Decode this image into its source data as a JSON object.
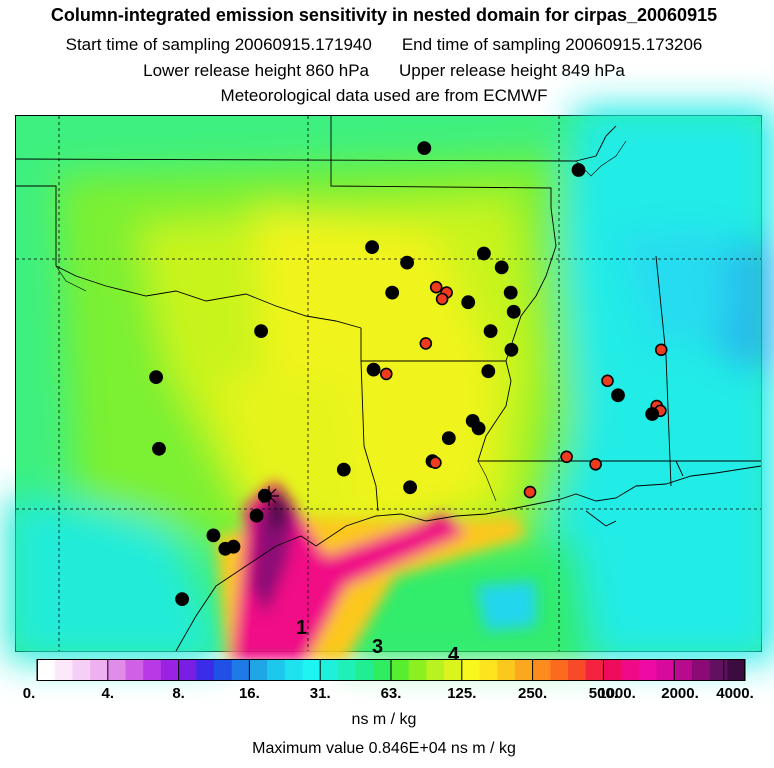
{
  "header": {
    "title": "Column-integrated emission sensitivity in nested domain for cirpas_20060915",
    "start_label": "Start time of sampling 20060915.171940",
    "end_label": "End time of sampling 20060915.173206",
    "lower_label": "Lower release height  860 hPa",
    "upper_label": "Upper release height  849 hPa",
    "met_label": "Meteorological data used are from ECMWF"
  },
  "map": {
    "markers": [
      {
        "lon_frac": 0.548,
        "lat_frac": 0.06,
        "color": "black"
      },
      {
        "lon_frac": 0.755,
        "lat_frac": 0.101,
        "color": "black"
      },
      {
        "lon_frac": 0.478,
        "lat_frac": 0.245,
        "color": "black"
      },
      {
        "lon_frac": 0.525,
        "lat_frac": 0.274,
        "color": "black"
      },
      {
        "lon_frac": 0.628,
        "lat_frac": 0.257,
        "color": "black"
      },
      {
        "lon_frac": 0.652,
        "lat_frac": 0.283,
        "color": "black"
      },
      {
        "lon_frac": 0.505,
        "lat_frac": 0.33,
        "color": "black"
      },
      {
        "lon_frac": 0.564,
        "lat_frac": 0.32,
        "color": "red"
      },
      {
        "lon_frac": 0.578,
        "lat_frac": 0.33,
        "color": "red"
      },
      {
        "lon_frac": 0.572,
        "lat_frac": 0.342,
        "color": "red"
      },
      {
        "lon_frac": 0.607,
        "lat_frac": 0.348,
        "color": "black"
      },
      {
        "lon_frac": 0.664,
        "lat_frac": 0.33,
        "color": "black"
      },
      {
        "lon_frac": 0.668,
        "lat_frac": 0.366,
        "color": "black"
      },
      {
        "lon_frac": 0.637,
        "lat_frac": 0.402,
        "color": "black"
      },
      {
        "lon_frac": 0.55,
        "lat_frac": 0.425,
        "color": "red"
      },
      {
        "lon_frac": 0.665,
        "lat_frac": 0.437,
        "color": "black"
      },
      {
        "lon_frac": 0.329,
        "lat_frac": 0.402,
        "color": "black"
      },
      {
        "lon_frac": 0.48,
        "lat_frac": 0.474,
        "color": "black"
      },
      {
        "lon_frac": 0.497,
        "lat_frac": 0.482,
        "color": "red"
      },
      {
        "lon_frac": 0.634,
        "lat_frac": 0.477,
        "color": "black"
      },
      {
        "lon_frac": 0.866,
        "lat_frac": 0.437,
        "color": "red"
      },
      {
        "lon_frac": 0.188,
        "lat_frac": 0.488,
        "color": "black"
      },
      {
        "lon_frac": 0.794,
        "lat_frac": 0.495,
        "color": "red"
      },
      {
        "lon_frac": 0.808,
        "lat_frac": 0.522,
        "color": "black"
      },
      {
        "lon_frac": 0.86,
        "lat_frac": 0.542,
        "color": "red"
      },
      {
        "lon_frac": 0.865,
        "lat_frac": 0.551,
        "color": "red"
      },
      {
        "lon_frac": 0.854,
        "lat_frac": 0.557,
        "color": "black"
      },
      {
        "lon_frac": 0.613,
        "lat_frac": 0.57,
        "color": "black"
      },
      {
        "lon_frac": 0.621,
        "lat_frac": 0.584,
        "color": "black"
      },
      {
        "lon_frac": 0.581,
        "lat_frac": 0.602,
        "color": "black"
      },
      {
        "lon_frac": 0.192,
        "lat_frac": 0.622,
        "color": "black"
      },
      {
        "lon_frac": 0.559,
        "lat_frac": 0.645,
        "color": "black"
      },
      {
        "lon_frac": 0.563,
        "lat_frac": 0.648,
        "color": "red"
      },
      {
        "lon_frac": 0.739,
        "lat_frac": 0.637,
        "color": "red"
      },
      {
        "lon_frac": 0.778,
        "lat_frac": 0.651,
        "color": "red"
      },
      {
        "lon_frac": 0.44,
        "lat_frac": 0.661,
        "color": "black"
      },
      {
        "lon_frac": 0.529,
        "lat_frac": 0.694,
        "color": "black"
      },
      {
        "lon_frac": 0.69,
        "lat_frac": 0.703,
        "color": "red"
      },
      {
        "lon_frac": 0.334,
        "lat_frac": 0.71,
        "color": "black"
      },
      {
        "lon_frac": 0.323,
        "lat_frac": 0.747,
        "color": "black"
      },
      {
        "lon_frac": 0.265,
        "lat_frac": 0.784,
        "color": "black"
      },
      {
        "lon_frac": 0.292,
        "lat_frac": 0.805,
        "color": "black"
      },
      {
        "lon_frac": 0.281,
        "lat_frac": 0.809,
        "color": "black"
      },
      {
        "lon_frac": 0.223,
        "lat_frac": 0.903,
        "color": "black"
      }
    ],
    "labels": [
      "1",
      "3",
      "4"
    ]
  },
  "colorbar": {
    "colors": [
      "#ffffff",
      "#fbe8fb",
      "#f6cff6",
      "#eeb0f0",
      "#e08ce8",
      "#d060e6",
      "#b73ae6",
      "#9a22e2",
      "#7a1ee4",
      "#3a2ce8",
      "#2050e6",
      "#1e7ae6",
      "#20a6e6",
      "#1ec8ec",
      "#1ee2f0",
      "#1ef4f2",
      "#1ef0dc",
      "#1ef0b8",
      "#20ee90",
      "#30ec60",
      "#58ee30",
      "#8cf020",
      "#b8f220",
      "#dcf41e",
      "#f8f81e",
      "#fce41e",
      "#fcc81e",
      "#fca81e",
      "#fc8c1e",
      "#fc6a1e",
      "#f84a28",
      "#f42440",
      "#f00c5c",
      "#f00a86",
      "#ee0aa4",
      "#d80a9e",
      "#b80a8c",
      "#8c0a76",
      "#641060",
      "#3c0c40"
    ],
    "tick_labels": [
      "0.",
      "4.",
      "8.",
      "16.",
      "31.",
      "63.",
      "125.",
      "250.",
      "500.",
      "1000.",
      "2000.",
      "4000."
    ],
    "tick_fracs": [
      0.0,
      0.1,
      0.2,
      0.3,
      0.4,
      0.5,
      0.6,
      0.7,
      0.8,
      0.9,
      0.97,
      1.0
    ],
    "units": "ns m / kg",
    "max_label": "Maximum value  0.846E+04 ns m / kg"
  }
}
